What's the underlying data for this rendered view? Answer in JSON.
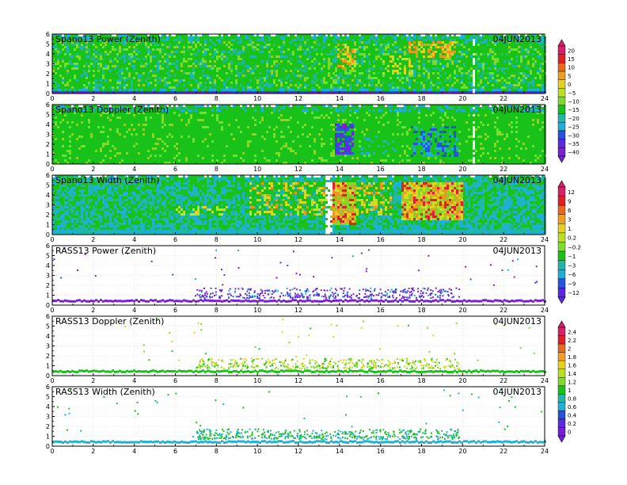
{
  "date": "04JUN2013",
  "x_ticks": [
    "0",
    "2",
    "4",
    "6",
    "8",
    "10",
    "12",
    "14",
    "16",
    "18",
    "20",
    "22",
    "24"
  ],
  "y_ticks": [
    "0",
    "1",
    "2",
    "3",
    "4",
    "5",
    "6"
  ],
  "colorbar1": {
    "labels": [
      "20",
      "15",
      "10",
      "5",
      "0",
      "−5",
      "−10",
      "−15",
      "−20",
      "−25",
      "−30",
      "−35",
      "−40"
    ]
  },
  "colorbar2": {
    "labels": [
      "12",
      "9",
      "6",
      "3",
      "1",
      "0.2",
      "−0.2",
      "−1",
      "−3",
      "−6",
      "−9",
      "−12"
    ]
  },
  "colorbar3": {
    "labels": [
      "2.4",
      "2.2",
      "2",
      "1.8",
      "1.6",
      "1.4",
      "1.2",
      "1",
      "0.8",
      "0.6",
      "0.4",
      "0.2",
      "0"
    ]
  },
  "palette": {
    "green": "#19c219",
    "light_green": "#7ddc2a",
    "teal": "#1fb8a8",
    "cyan": "#1fb0d8",
    "blue": "#2a52e0",
    "purple": "#7a1fd8",
    "yellow": "#d8d822",
    "orange": "#e89a20",
    "red": "#e0202a",
    "magenta": "#d82a8a"
  },
  "chart_data": [
    {
      "type": "heatmap",
      "title": "Spano13 Power (Zenith)",
      "date": "04JUN2013",
      "x_range": [
        0,
        24
      ],
      "y_range": [
        0,
        6
      ],
      "colorbar": "colorbar1",
      "features": "mostly green (about -15 to -5) with a purple/blue low band near 0.5 km; yellow/orange patches 14-14.8 h and 17.5-19.5 h at 3-5 km"
    },
    {
      "type": "heatmap",
      "title": "Spano13 Doppler (Zenith)",
      "date": "04JUN2013",
      "x_range": [
        0,
        24
      ],
      "y_range": [
        0,
        6
      ],
      "colorbar": "colorbar1",
      "features": "uniform green with blue/purple patches 13.8-14.5 h and 17.5-19.5 h at 1-4 km"
    },
    {
      "type": "heatmap",
      "title": "Spano13 Width (Zenith)",
      "date": "04JUN2013",
      "x_range": [
        0,
        24
      ],
      "y_range": [
        0,
        6
      ],
      "colorbar": "colorbar2",
      "features": "green/cyan background with yellow, orange and red patches 10-16 h and 17-20 h"
    },
    {
      "type": "scatter",
      "title": "RASS13 Power (Zenith)",
      "date": "04JUN2013",
      "x_range": [
        0,
        24
      ],
      "y_range": [
        0,
        6
      ],
      "colorbar": "colorbar2",
      "features": "purple/blue points, dense 7-20 h below 1.8 km; continuous purple band near 0.6 km"
    },
    {
      "type": "scatter",
      "title": "RASS13 Doppler (Zenith)",
      "date": "04JUN2013",
      "x_range": [
        0,
        24
      ],
      "y_range": [
        0,
        6
      ],
      "colorbar": "colorbar3",
      "features": "yellow-green points, dense 7-20 h below 1.8 km; continuous green band near 0.5 km"
    },
    {
      "type": "scatter",
      "title": "RASS13 Width (Zenith)",
      "date": "04JUN2013",
      "x_range": [
        0,
        24
      ],
      "y_range": [
        0,
        6
      ],
      "colorbar": "colorbar3",
      "features": "green/teal points, dense 7-20 h below 1.8 km; continuous cyan band near 0.5 km"
    }
  ]
}
